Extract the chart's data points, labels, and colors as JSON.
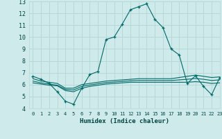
{
  "xlabel": "Humidex (Indice chaleur)",
  "bg_color": "#ceeaea",
  "grid_color": "#b8d8d8",
  "line_color": "#006868",
  "xlim": [
    -0.5,
    23
  ],
  "ylim": [
    4,
    13
  ],
  "xticks": [
    0,
    1,
    2,
    3,
    4,
    5,
    6,
    7,
    8,
    9,
    10,
    11,
    12,
    13,
    14,
    15,
    16,
    17,
    18,
    19,
    20,
    21,
    22,
    23
  ],
  "yticks": [
    4,
    5,
    6,
    7,
    8,
    9,
    10,
    11,
    12,
    13
  ],
  "curves": [
    {
      "x": [
        0,
        1,
        2,
        3,
        4,
        5,
        6,
        7,
        8,
        9,
        10,
        11,
        12,
        13,
        14,
        15,
        16,
        17,
        18,
        19,
        20,
        21,
        22,
        23
      ],
      "y": [
        6.7,
        6.45,
        6.1,
        5.4,
        4.6,
        4.35,
        5.7,
        6.85,
        7.1,
        9.8,
        10.0,
        11.1,
        12.3,
        12.55,
        12.8,
        11.5,
        10.8,
        9.0,
        8.5,
        6.1,
        6.75,
        5.85,
        5.15,
        6.6
      ],
      "marker": true
    },
    {
      "x": [
        0,
        1,
        2,
        3,
        4,
        5,
        6,
        7,
        8,
        9,
        10,
        11,
        12,
        13,
        14,
        15,
        16,
        17,
        18,
        19,
        20,
        21,
        22,
        23
      ],
      "y": [
        6.5,
        6.3,
        6.2,
        6.1,
        5.7,
        5.7,
        6.0,
        6.1,
        6.2,
        6.3,
        6.35,
        6.4,
        6.45,
        6.5,
        6.5,
        6.5,
        6.5,
        6.5,
        6.6,
        6.7,
        6.8,
        6.7,
        6.6,
        6.65
      ],
      "marker": false
    },
    {
      "x": [
        0,
        1,
        2,
        3,
        4,
        5,
        6,
        7,
        8,
        9,
        10,
        11,
        12,
        13,
        14,
        15,
        16,
        17,
        18,
        19,
        20,
        21,
        22,
        23
      ],
      "y": [
        6.15,
        6.05,
        5.95,
        5.9,
        5.5,
        5.4,
        5.7,
        5.85,
        5.95,
        6.05,
        6.1,
        6.15,
        6.2,
        6.2,
        6.2,
        6.2,
        6.2,
        6.2,
        6.2,
        6.2,
        6.25,
        6.2,
        6.1,
        6.15
      ],
      "marker": false
    },
    {
      "x": [
        0,
        1,
        2,
        3,
        4,
        5,
        6,
        7,
        8,
        9,
        10,
        11,
        12,
        13,
        14,
        15,
        16,
        17,
        18,
        19,
        20,
        21,
        22,
        23
      ],
      "y": [
        6.3,
        6.15,
        6.05,
        5.95,
        5.6,
        5.55,
        5.85,
        5.97,
        6.07,
        6.17,
        6.22,
        6.27,
        6.32,
        6.35,
        6.35,
        6.35,
        6.35,
        6.35,
        6.4,
        6.45,
        6.52,
        6.45,
        6.35,
        6.4
      ],
      "marker": false
    }
  ]
}
